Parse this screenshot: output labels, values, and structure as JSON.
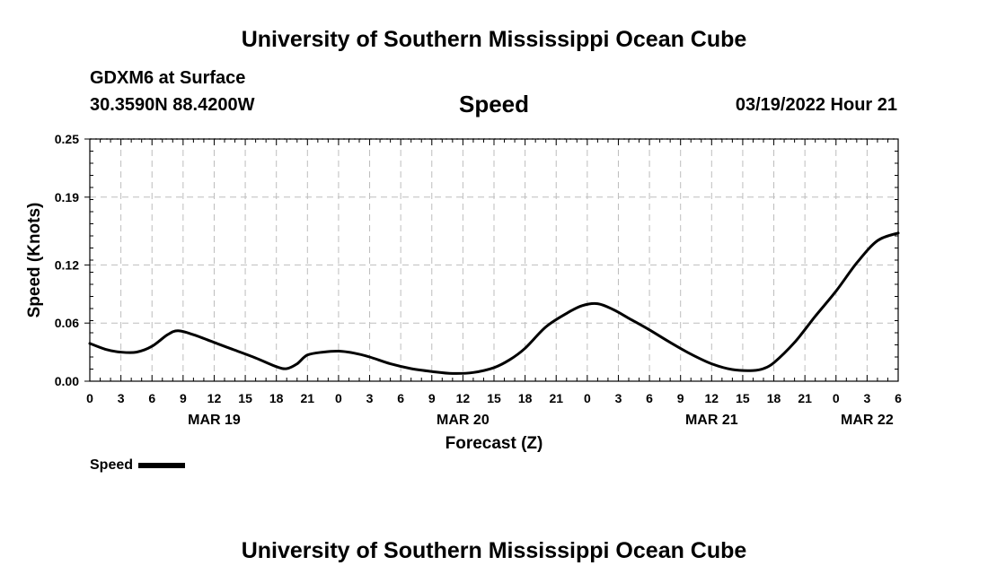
{
  "header": {
    "title": "University of Southern Mississippi Ocean Cube",
    "station": "GDXM6 at Surface",
    "location": "30.3590N  88.4200W",
    "variable": "Speed",
    "datetime": "03/19/2022 Hour 21"
  },
  "footer": {
    "title": "University of Southern Mississippi Ocean Cube"
  },
  "legend": {
    "label": "Speed"
  },
  "chart_data": {
    "type": "line",
    "title": "Speed",
    "xlabel": "Forecast (Z)",
    "ylabel": "Speed (Knots)",
    "xlim": [
      0,
      78
    ],
    "ylim": [
      0,
      0.25
    ],
    "yticks": [
      0.0,
      0.06,
      0.12,
      0.19,
      0.25
    ],
    "ytick_labels": [
      "0.00",
      "0.06",
      "0.12",
      "0.19",
      "0.25"
    ],
    "xtick_labels": [
      "0",
      "3",
      "6",
      "9",
      "12",
      "15",
      "18",
      "21",
      "0",
      "3",
      "6",
      "9",
      "12",
      "15",
      "18",
      "21",
      "0",
      "3",
      "6",
      "9",
      "12",
      "15",
      "18",
      "21",
      "0",
      "3",
      "6"
    ],
    "date_labels": [
      {
        "label": "MAR 19",
        "x": 12
      },
      {
        "label": "MAR 20",
        "x": 36
      },
      {
        "label": "MAR 21",
        "x": 60
      },
      {
        "label": "MAR 22",
        "x": 75
      }
    ],
    "grid": true,
    "series": [
      {
        "name": "Speed",
        "x": [
          0,
          1.5,
          3,
          4.5,
          6,
          7.5,
          8.5,
          10,
          12,
          14,
          16,
          18,
          19,
          20,
          21,
          22.5,
          24,
          25.5,
          27,
          29,
          31,
          33,
          35,
          37,
          39,
          40.5,
          42,
          44,
          46,
          47.5,
          49,
          50.5,
          52,
          54,
          56,
          58,
          60,
          62,
          64,
          65,
          66,
          68,
          70,
          72,
          74,
          76,
          78
        ],
        "values": [
          0.039,
          0.033,
          0.03,
          0.03,
          0.036,
          0.048,
          0.052,
          0.048,
          0.04,
          0.032,
          0.024,
          0.015,
          0.013,
          0.018,
          0.027,
          0.03,
          0.031,
          0.029,
          0.025,
          0.018,
          0.013,
          0.01,
          0.008,
          0.009,
          0.014,
          0.022,
          0.034,
          0.056,
          0.07,
          0.078,
          0.08,
          0.074,
          0.065,
          0.053,
          0.04,
          0.028,
          0.018,
          0.012,
          0.011,
          0.013,
          0.019,
          0.04,
          0.067,
          0.093,
          0.122,
          0.145,
          0.153
        ]
      }
    ]
  }
}
